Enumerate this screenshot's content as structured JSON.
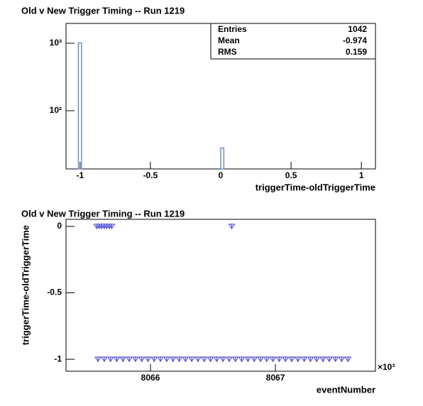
{
  "chart_data": [
    {
      "type": "histogram",
      "title": "Old v New Trigger Timing -- Run 1219",
      "x_label": "triggerTime-oldTriggerTime",
      "bins": [
        -1.012,
        -0.99,
        0,
        0.022
      ],
      "counts": [
        1014,
        0,
        28
      ],
      "color": "#6a8fd0",
      "xlim": [
        -1.1,
        1.1
      ],
      "xticks": [
        -1,
        -0.5,
        0,
        0.5,
        1
      ],
      "ylim": [
        13.7,
        1970
      ],
      "log_y": true,
      "yticks": [
        {
          "value": 100,
          "label": "10²"
        },
        {
          "value": 1000,
          "label": "10³"
        }
      ],
      "stats": [
        {
          "label": "Entries",
          "value": 1042
        },
        {
          "label": "Mean",
          "value": -0.974
        },
        {
          "label": "RMS",
          "value": 0.159
        }
      ]
    },
    {
      "type": "scatter",
      "title": "Old v New Trigger Timing -- Run 1219",
      "x_label": "eventNumber",
      "y_label": "triggerTime-oldTriggerTime",
      "x_multiplier": "×10³",
      "color": "#5a5ad6",
      "x": [
        8065.57,
        8065.59,
        8065.61,
        8065.63,
        8065.65,
        8065.67,
        8065.69,
        8066.65,
        8065.58,
        8065.63,
        8065.68,
        8065.73,
        8065.78,
        8065.83,
        8065.88,
        8065.93,
        8065.98,
        8066.03,
        8066.08,
        8066.13,
        8066.18,
        8066.23,
        8066.28,
        8066.33,
        8066.38,
        8066.43,
        8066.48,
        8066.53,
        8066.58,
        8066.63,
        8066.68,
        8066.73,
        8066.78,
        8066.83,
        8066.88,
        8066.93,
        8066.98,
        8067.03,
        8067.08,
        8067.13,
        8067.18,
        8067.23,
        8067.28,
        8067.33,
        8067.38,
        8067.43,
        8067.48,
        8067.53,
        8067.58
      ],
      "values": [
        0,
        0,
        0,
        0,
        0,
        0,
        0,
        0,
        -1,
        -1,
        -1,
        -1,
        -1,
        -1,
        -1,
        -1,
        -1,
        -1,
        -1,
        -1,
        -1,
        -1,
        -1,
        -1,
        -1,
        -1,
        -1,
        -1,
        -1,
        -1,
        -1,
        -1,
        -1,
        -1,
        -1,
        -1,
        -1,
        -1,
        -1,
        -1,
        -1,
        -1,
        -1,
        -1,
        -1,
        -1,
        -1,
        -1,
        -1
      ],
      "xlim": [
        8065.324,
        8067.8
      ],
      "xticks": [
        8066,
        8067
      ],
      "ylim": [
        -1.09,
        0.053
      ],
      "yticks": [
        -1,
        -0.5,
        0
      ]
    }
  ]
}
